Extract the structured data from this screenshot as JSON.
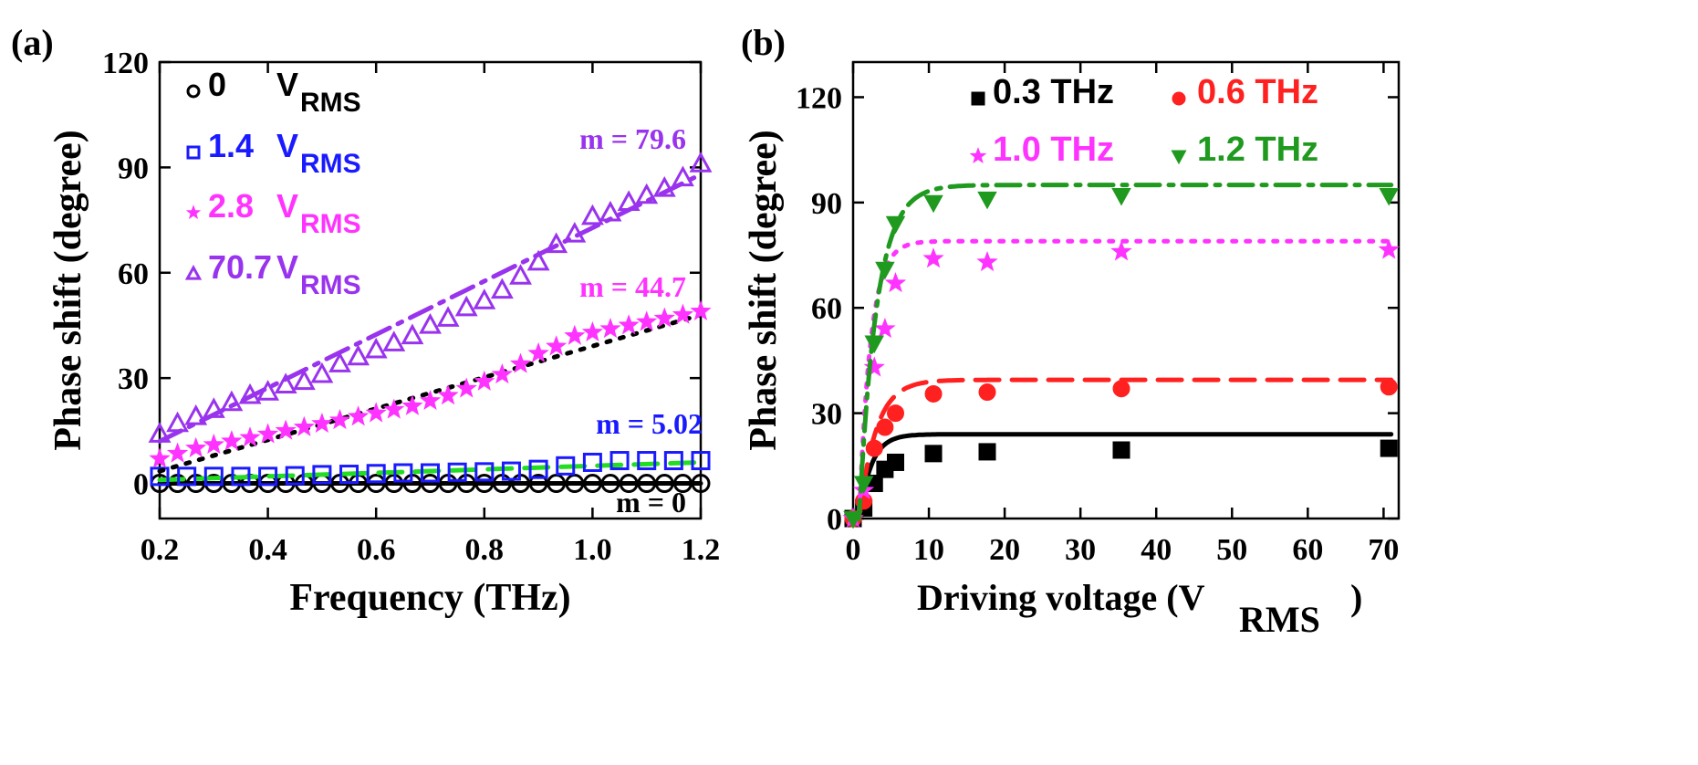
{
  "chart_data": [
    {
      "panel_label": "(a)",
      "type": "scatter",
      "xlabel": "Frequency (THz)",
      "ylabel": "Phase shift (degree)",
      "xlim": [
        0.2,
        1.2
      ],
      "ylim": [
        -10,
        120
      ],
      "xticks": [
        0.2,
        0.4,
        0.6,
        0.8,
        1.0,
        1.2
      ],
      "xtick_labels": [
        "0.2",
        "0.4",
        "0.6",
        "0.8",
        "1.0",
        "1.2"
      ],
      "yticks": [
        0,
        30,
        60,
        90,
        120
      ],
      "ytick_labels": [
        "0",
        "30",
        "60",
        "90",
        "120"
      ],
      "legend_unit": "V",
      "legend_unit_sub": "RMS",
      "series": [
        {
          "name": "0",
          "marker": "circle-open",
          "color": "#000000",
          "fit_style": "solid",
          "slope_label": "m = 0",
          "slope_color": "#000000",
          "fit_y": [
            0,
            0
          ],
          "x": [
            0.2,
            0.233,
            0.267,
            0.3,
            0.333,
            0.367,
            0.4,
            0.433,
            0.467,
            0.5,
            0.533,
            0.567,
            0.6,
            0.633,
            0.667,
            0.7,
            0.733,
            0.767,
            0.8,
            0.833,
            0.867,
            0.9,
            0.933,
            0.967,
            1.0,
            1.033,
            1.067,
            1.1,
            1.133,
            1.167,
            1.2
          ],
          "y": [
            0,
            0,
            0,
            0,
            0,
            0,
            0,
            0,
            0,
            0,
            0,
            0,
            0,
            0,
            0,
            0,
            0,
            0,
            0,
            0,
            0,
            0,
            0,
            0,
            0,
            0,
            0,
            0,
            0,
            0,
            0
          ]
        },
        {
          "name": "1.4",
          "marker": "square-open",
          "color": "#1a1aff",
          "fit_style": "dash",
          "fit_color": "#22dd22",
          "slope_label": "m = 5.02",
          "slope_color": "#1a1aff",
          "fit_y": [
            1.0,
            6.0
          ],
          "x": [
            0.2,
            0.25,
            0.3,
            0.35,
            0.4,
            0.45,
            0.5,
            0.55,
            0.6,
            0.65,
            0.7,
            0.75,
            0.8,
            0.85,
            0.9,
            0.95,
            1.0,
            1.05,
            1.1,
            1.15,
            1.2
          ],
          "y": [
            2,
            2,
            2,
            2,
            2,
            2.2,
            2.5,
            2.6,
            2.8,
            3,
            3,
            3.2,
            3.3,
            3.5,
            4,
            5,
            6,
            6.5,
            6.5,
            6.5,
            6.5
          ]
        },
        {
          "name": "2.8",
          "marker": "star",
          "color": "#ff33ff",
          "fit_style": "dot",
          "fit_color": "#000000",
          "slope_label": "m = 44.7",
          "slope_color": "#ff33ff",
          "fit_y": [
            3.5,
            48
          ],
          "x": [
            0.2,
            0.233,
            0.267,
            0.3,
            0.333,
            0.367,
            0.4,
            0.433,
            0.467,
            0.5,
            0.533,
            0.567,
            0.6,
            0.633,
            0.667,
            0.7,
            0.733,
            0.767,
            0.8,
            0.833,
            0.867,
            0.9,
            0.933,
            0.967,
            1.0,
            1.033,
            1.067,
            1.1,
            1.133,
            1.167,
            1.2
          ],
          "y": [
            7,
            8.5,
            10,
            11,
            12,
            13,
            14,
            15,
            16,
            17,
            18,
            19,
            20,
            21,
            22,
            23.5,
            25,
            27,
            29,
            31,
            34,
            37,
            39,
            42,
            43,
            44,
            45,
            46,
            47,
            48,
            49
          ]
        },
        {
          "name": "70.7",
          "marker": "triangle-open",
          "color": "#9933ee",
          "fit_style": "dashdot",
          "fit_color": "#9933ee",
          "slope_label": "m = 79.6",
          "slope_color": "#9933ee",
          "fit_y": [
            12,
            88
          ],
          "x": [
            0.2,
            0.233,
            0.267,
            0.3,
            0.333,
            0.367,
            0.4,
            0.433,
            0.467,
            0.5,
            0.533,
            0.567,
            0.6,
            0.633,
            0.667,
            0.7,
            0.733,
            0.767,
            0.8,
            0.833,
            0.867,
            0.9,
            0.933,
            0.967,
            1.0,
            1.033,
            1.067,
            1.1,
            1.133,
            1.167,
            1.2
          ],
          "y": [
            14,
            17,
            19,
            21,
            23,
            25,
            26,
            28,
            29,
            31,
            34,
            36,
            38,
            40,
            42,
            45,
            47,
            50,
            52,
            55,
            59,
            63,
            68,
            71,
            76,
            77,
            80,
            82,
            84,
            87,
            91
          ]
        }
      ]
    },
    {
      "panel_label": "(b)",
      "type": "scatter",
      "xlabel": "Driving voltage (V",
      "xlabel_sub": "RMS",
      "xlabel_close": ")",
      "ylabel": "Phase shift (degree)",
      "xlim": [
        0,
        72
      ],
      "ylim": [
        0,
        130
      ],
      "xticks": [
        0,
        10,
        20,
        30,
        40,
        50,
        60,
        70
      ],
      "xtick_labels": [
        "0",
        "10",
        "20",
        "30",
        "40",
        "50",
        "60",
        "70"
      ],
      "yticks": [
        0,
        30,
        60,
        90,
        120
      ],
      "ytick_labels": [
        "0",
        "30",
        "60",
        "90",
        "120"
      ],
      "series": [
        {
          "name": "0.3 THz",
          "marker": "square",
          "color": "#000000",
          "fit_style": "solid",
          "saturation": 24.0,
          "tau": 1.6,
          "x": [
            0,
            1.4,
            2.8,
            4.2,
            5.6,
            10.6,
            17.7,
            35.4,
            70.7
          ],
          "y": [
            0,
            3,
            10,
            14,
            16,
            18.5,
            19,
            19.5,
            20
          ]
        },
        {
          "name": "0.6 THz",
          "marker": "circle",
          "color": "#ff2020",
          "fit_style": "dash",
          "saturation": 39.5,
          "tau": 2.2,
          "x": [
            0,
            1.4,
            2.8,
            4.2,
            5.6,
            10.6,
            17.7,
            35.4,
            70.7
          ],
          "y": [
            0,
            5,
            20,
            26,
            30,
            35.5,
            36,
            37,
            37.5
          ]
        },
        {
          "name": "1.0 THz",
          "marker": "star",
          "color": "#ff33ff",
          "fit_style": "dot",
          "saturation": 79.0,
          "tau": 1.5,
          "x": [
            0,
            1.4,
            2.8,
            4.2,
            5.6,
            10.6,
            17.7,
            35.4,
            70.7
          ],
          "y": [
            0,
            8,
            43,
            54,
            67,
            74,
            73,
            76,
            76.5
          ]
        },
        {
          "name": "1.2 THz",
          "marker": "triangle-down",
          "color": "#1f9a1f",
          "fit_style": "dashdot",
          "saturation": 95.0,
          "tau": 2.3,
          "x": [
            0,
            1.4,
            2.8,
            4.2,
            5.6,
            10.6,
            17.7,
            35.4,
            70.7
          ],
          "y": [
            0,
            10,
            50,
            71,
            84,
            90,
            91,
            92,
            92
          ]
        }
      ]
    }
  ]
}
